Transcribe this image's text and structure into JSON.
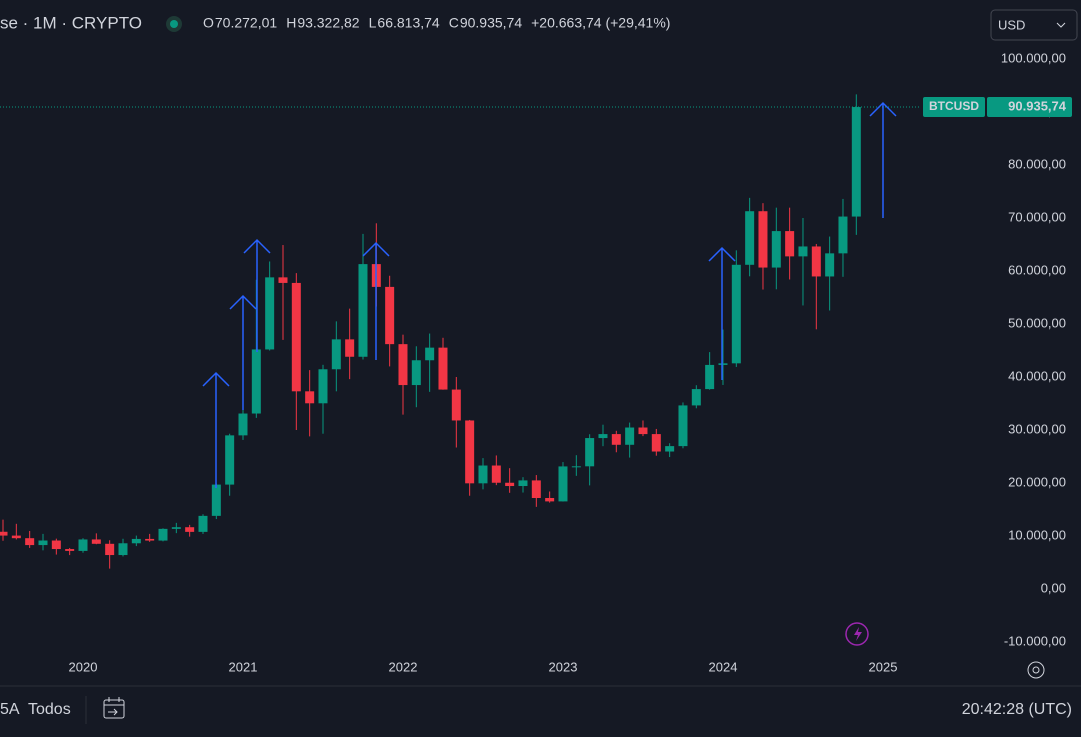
{
  "header": {
    "title": "se · 1M · CRYPTO",
    "ohlc": [
      {
        "label": "O",
        "value": "70.272,01"
      },
      {
        "label": "H",
        "value": "93.322,82"
      },
      {
        "label": "L",
        "value": "66.813,74"
      },
      {
        "label": "C",
        "value": "90.935,74"
      }
    ],
    "change": "+20.663,74 (+29,41%)",
    "currency": "USD"
  },
  "toolbar": {
    "range": "5A",
    "all": "Todos",
    "clock": "20:42:28 (UTC)"
  },
  "chart_data": {
    "type": "candlestick",
    "symbol": "BTCUSD",
    "up_color": "#089981",
    "down_color": "#f23645",
    "categories": [
      null,
      null,
      null,
      null,
      null,
      null,
      "2020",
      null,
      null,
      null,
      null,
      null,
      null,
      null,
      null,
      null,
      null,
      null,
      "2021",
      null,
      null,
      null,
      null,
      null,
      null,
      null,
      null,
      null,
      null,
      null,
      "2022",
      null,
      null,
      null,
      null,
      null,
      null,
      null,
      null,
      null,
      null,
      null,
      "2023",
      null,
      null,
      null,
      null,
      null,
      null,
      null,
      null,
      null,
      null,
      null,
      "2024",
      null,
      null,
      null,
      null,
      null,
      null,
      null,
      null,
      null,
      null,
      null,
      "2025"
    ],
    "open": [
      10800,
      10080,
      9590,
      8290,
      9150,
      7540,
      7190,
      9350,
      8530,
      6410,
      8630,
      9450,
      9140,
      11350,
      11660,
      10780,
      13800,
      19700,
      28990,
      33110,
      45200,
      58800,
      57750,
      37300,
      35040,
      41460,
      47100,
      43820,
      61300,
      57000,
      46200,
      38480,
      43160,
      45540,
      37630,
      31800,
      19940,
      23300,
      20050,
      19430,
      20490,
      17170,
      16530,
      23130,
      23150,
      28480,
      29230,
      27210,
      30470,
      29230,
      25940,
      26960,
      34640,
      37720,
      42280,
      42580,
      61170,
      71280,
      60650,
      67530,
      62760,
      64630,
      58970,
      63330,
      70272.01,
      null,
      null
    ],
    "high": [
      13100,
      12300,
      10950,
      10400,
      9500,
      7750,
      9580,
      10500,
      9200,
      9480,
      10080,
      10400,
      11450,
      12480,
      12100,
      14100,
      19900,
      29300,
      41950,
      58350,
      61800,
      64900,
      59600,
      41300,
      42300,
      50500,
      52900,
      67000,
      69000,
      59100,
      47990,
      45800,
      48200,
      47400,
      40000,
      31900,
      24700,
      25200,
      22800,
      21100,
      21500,
      18400,
      23950,
      25250,
      29200,
      31000,
      29850,
      31400,
      31800,
      30200,
      27500,
      35200,
      38450,
      44700,
      48950,
      63900,
      73800,
      72800,
      71950,
      71950,
      70000,
      65100,
      66500,
      73600,
      93322.82,
      null,
      null
    ],
    "low": [
      9100,
      9350,
      7750,
      7300,
      6500,
      6400,
      6850,
      8450,
      3850,
      6150,
      8100,
      8900,
      8990,
      10540,
      9880,
      10400,
      13200,
      17600,
      28130,
      32300,
      45000,
      47000,
      30000,
      28800,
      29300,
      37300,
      39600,
      43300,
      53300,
      42000,
      32900,
      34300,
      37200,
      37600,
      26700,
      17600,
      18800,
      19600,
      18150,
      18200,
      15500,
      16300,
      16500,
      21350,
      19550,
      26950,
      25800,
      24800,
      28850,
      25150,
      24900,
      26550,
      34100,
      37600,
      38500,
      41900,
      59000,
      56500,
      56550,
      58400,
      53500,
      49000,
      52550,
      58900,
      66813.74,
      null,
      null
    ],
    "close": [
      10080,
      9590,
      8290,
      9150,
      7540,
      7190,
      9350,
      8530,
      6410,
      8630,
      9450,
      9140,
      11350,
      11660,
      10780,
      13800,
      19700,
      28990,
      33110,
      45200,
      58800,
      57750,
      37300,
      35040,
      41460,
      47100,
      43820,
      61300,
      57000,
      46200,
      38480,
      43160,
      45540,
      37630,
      31800,
      19940,
      23300,
      20050,
      19430,
      20490,
      17170,
      16530,
      23130,
      23150,
      28480,
      29230,
      27210,
      30470,
      29230,
      25940,
      26960,
      34640,
      37720,
      42280,
      42580,
      61170,
      71280,
      60650,
      67530,
      62760,
      64630,
      58970,
      63330,
      70272.01,
      90935.74,
      null,
      null
    ],
    "last_price": {
      "value": 90935.74,
      "label": "90.935,74"
    },
    "ylim": [
      -12450,
      111130
    ],
    "yticks": [
      {
        "value": 100000,
        "label": "100.000,00"
      },
      {
        "value": 90000,
        "label": "90.000,00"
      },
      {
        "value": 80000,
        "label": "80.000,00"
      },
      {
        "value": 70000,
        "label": "70.000,00"
      },
      {
        "value": 60000,
        "label": "60.000,00"
      },
      {
        "value": 50000,
        "label": "50.000,00"
      },
      {
        "value": 40000,
        "label": "40.000,00"
      },
      {
        "value": 30000,
        "label": "30.000,00"
      },
      {
        "value": 20000,
        "label": "20.000,00"
      },
      {
        "value": 10000,
        "label": "10.000,00"
      },
      {
        "value": 0,
        "label": "0,00"
      },
      {
        "value": -10000,
        "label": "-10.000,00"
      }
    ],
    "grid": false
  }
}
